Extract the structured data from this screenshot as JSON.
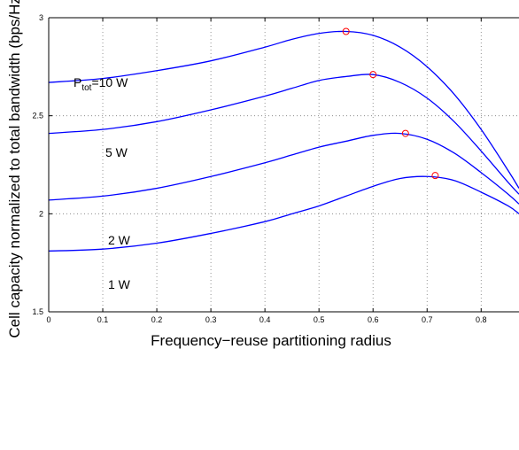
{
  "chart_data": {
    "type": "line",
    "title": "",
    "xlabel": "Frequency−reuse partitioning radius",
    "ylabel": "Cell capacity normalized to total bandwidth (bps/Hz)",
    "xlim": [
      0,
      0.87
    ],
    "ylim": [
      1.5,
      3.0
    ],
    "grid": true,
    "x_ticks": [
      "0",
      "0.1",
      "0.2",
      "0.3",
      "0.4",
      "0.5",
      "0.6",
      "0.7",
      "0.8"
    ],
    "y_ticks": [
      "1.5",
      "2",
      "2.5",
      "3"
    ],
    "series_color": "#0000ff",
    "marker_color": "#ff0000",
    "series": [
      {
        "label_main": "P",
        "label_sub": "tot",
        "label_rest": "=10 W",
        "x": [
          0,
          0.1,
          0.2,
          0.3,
          0.4,
          0.45,
          0.5,
          0.55,
          0.6,
          0.65,
          0.7,
          0.75,
          0.8,
          0.85,
          0.87
        ],
        "y": [
          2.67,
          2.69,
          2.73,
          2.78,
          2.85,
          2.89,
          2.92,
          2.93,
          2.91,
          2.85,
          2.75,
          2.61,
          2.43,
          2.22,
          2.13
        ],
        "optimum": {
          "x": 0.55,
          "y": 2.93
        }
      },
      {
        "label_main": "5 W",
        "x": [
          0,
          0.1,
          0.2,
          0.3,
          0.4,
          0.45,
          0.5,
          0.55,
          0.6,
          0.65,
          0.7,
          0.75,
          0.8,
          0.85,
          0.87
        ],
        "y": [
          2.41,
          2.43,
          2.47,
          2.53,
          2.6,
          2.64,
          2.68,
          2.7,
          2.71,
          2.67,
          2.59,
          2.47,
          2.32,
          2.16,
          2.1
        ],
        "optimum": {
          "x": 0.6,
          "y": 2.71
        }
      },
      {
        "label_main": "2 W",
        "x": [
          0,
          0.1,
          0.2,
          0.3,
          0.4,
          0.45,
          0.5,
          0.55,
          0.6,
          0.65,
          0.7,
          0.75,
          0.8,
          0.85,
          0.87
        ],
        "y": [
          2.07,
          2.09,
          2.13,
          2.19,
          2.26,
          2.3,
          2.34,
          2.37,
          2.4,
          2.41,
          2.38,
          2.31,
          2.21,
          2.1,
          2.05
        ],
        "optimum": {
          "x": 0.66,
          "y": 2.41
        }
      },
      {
        "label_main": "1 W",
        "x": [
          0,
          0.1,
          0.2,
          0.3,
          0.4,
          0.45,
          0.5,
          0.55,
          0.6,
          0.65,
          0.7,
          0.75,
          0.8,
          0.85,
          0.87
        ],
        "y": [
          1.81,
          1.82,
          1.85,
          1.9,
          1.96,
          2.0,
          2.04,
          2.09,
          2.14,
          2.18,
          2.19,
          2.17,
          2.11,
          2.04,
          2.0
        ],
        "optimum": {
          "x": 0.715,
          "y": 2.195
        }
      }
    ]
  }
}
